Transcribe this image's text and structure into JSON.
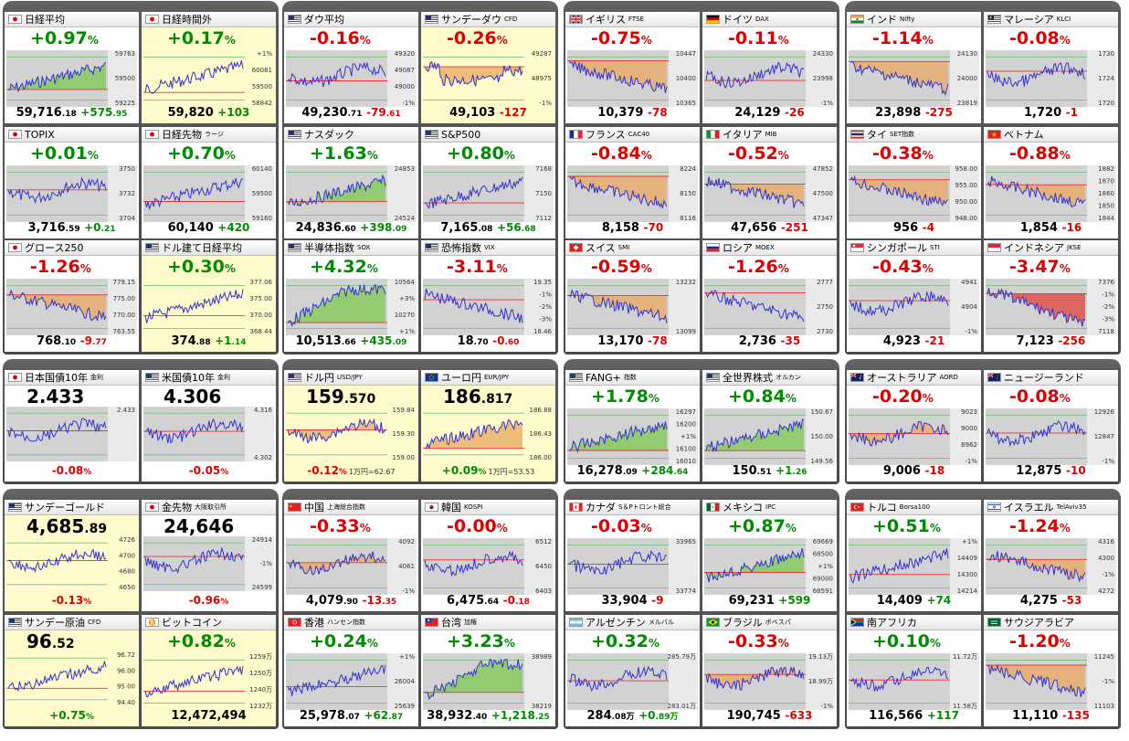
{
  "colors": {
    "up": "#008c00",
    "down": "#dd0000",
    "panel": "#5a5a5a",
    "highlight": "#fffbcc",
    "chart_bg": "#d4d4d4"
  },
  "groups": [
    {
      "cards": [
        {
          "name": "日経平均",
          "flag": "jp",
          "change": "+0.97",
          "dir": "up",
          "price_int": "59,716",
          "price_dec": ".18",
          "diff": "+575",
          "diff_dec": ".95",
          "labels": [
            "59763",
            "59500",
            "59225"
          ],
          "chart": "up",
          "fill": "green"
        },
        {
          "name": "日経時間外",
          "flag": "jp",
          "change": "+0.17",
          "dir": "up",
          "price_int": "59,820",
          "price_dec": "",
          "diff": "+103",
          "diff_dec": "",
          "labels": [
            "+1%",
            "60081",
            "59500",
            "58842"
          ],
          "chart": "up",
          "fill": "none",
          "yellow": true
        },
        {
          "name": "TOPIX",
          "flag": "jp",
          "change": "+0.01",
          "dir": "up",
          "price_int": "3,716",
          "price_dec": ".59",
          "diff": "+0",
          "diff_dec": ".21",
          "labels": [
            "3750",
            "3732",
            "3704"
          ],
          "chart": "flat",
          "fill": "none"
        },
        {
          "name": "日経先物",
          "sub": "ラージ",
          "flag": "jp",
          "change": "+0.70",
          "dir": "up",
          "price_int": "60,140",
          "price_dec": "",
          "diff": "+420",
          "diff_dec": "",
          "labels": [
            "60140",
            "59500",
            "59160"
          ],
          "chart": "up",
          "fill": "none"
        },
        {
          "name": "グロース250",
          "flag": "jp",
          "change": "-1.26",
          "dir": "dn",
          "price_int": "768",
          "price_dec": ".10",
          "diff": "-9",
          "diff_dec": ".77",
          "labels": [
            "779.15",
            "775.00",
            "770.00",
            "763.55"
          ],
          "chart": "down",
          "fill": "orange"
        },
        {
          "name": "ドル建て日経平均",
          "flag": "us",
          "change": "+0.30",
          "dir": "up",
          "price_int": "374",
          "price_dec": ".88",
          "diff": "+1",
          "diff_dec": ".14",
          "labels": [
            "377.06",
            "375.00",
            "370.00",
            "368.44"
          ],
          "chart": "up",
          "fill": "none",
          "yellow": true
        }
      ]
    },
    {
      "cards": [
        {
          "name": "ダウ平均",
          "flag": "us",
          "change": "-0.16",
          "dir": "dn",
          "price_int": "49,230",
          "price_dec": ".71",
          "diff": "-79",
          "diff_dec": ".61",
          "labels": [
            "49320",
            "49087",
            "49000",
            "-1%"
          ],
          "chart": "flat",
          "fill": "none"
        },
        {
          "name": "サンデーダウ",
          "sub": "CFD",
          "flag": "us",
          "change": "-0.26",
          "dir": "dn",
          "price_int": "49,103",
          "price_dec": "",
          "diff": "-127",
          "diff_dec": "",
          "labels": [
            "49287",
            "48975",
            "-1%"
          ],
          "chart": "step",
          "fill": "orange",
          "yellow": true
        },
        {
          "name": "ナスダック",
          "flag": "us",
          "change": "+1.63",
          "dir": "up",
          "price_int": "24,836",
          "price_dec": ".60",
          "diff": "+398",
          "diff_dec": ".09",
          "labels": [
            "24853",
            "24524"
          ],
          "chart": "up",
          "fill": "green"
        },
        {
          "name": "S&P500",
          "flag": "us",
          "change": "+0.80",
          "dir": "up",
          "price_int": "7,165",
          "price_dec": ".08",
          "diff": "+56",
          "diff_dec": ".68",
          "labels": [
            "7168",
            "7150",
            "7112"
          ],
          "chart": "up",
          "fill": "none"
        },
        {
          "name": "半導体指数",
          "sub": "SOX",
          "flag": "us",
          "change": "+4.32",
          "dir": "up",
          "price_int": "10,513",
          "price_dec": ".66",
          "diff": "+435",
          "diff_dec": ".09",
          "labels": [
            "10564",
            "+3%",
            "10270",
            "+1%"
          ],
          "chart": "upfast",
          "fill": "green"
        },
        {
          "name": "恐怖指数",
          "sub": "VIX",
          "flag": "us",
          "change": "-3.11",
          "dir": "dn",
          "price_int": "18",
          "price_dec": ".70",
          "diff": "-0",
          "diff_dec": ".60",
          "labels": [
            "19.35",
            "-1%",
            "-2%",
            "-3%",
            "18.46"
          ],
          "chart": "down",
          "fill": "none"
        }
      ]
    },
    {
      "cards": [
        {
          "name": "イギリス",
          "sub": "FTSE",
          "flag": "gb",
          "change": "-0.75",
          "dir": "dn",
          "price_int": "10,379",
          "price_dec": "",
          "diff": "-78",
          "diff_dec": "",
          "labels": [
            "10447",
            "10400",
            "10365"
          ],
          "chart": "down",
          "fill": "orange"
        },
        {
          "name": "ドイツ",
          "sub": "DAX",
          "flag": "de",
          "change": "-0.11",
          "dir": "dn",
          "price_int": "24,129",
          "price_dec": "",
          "diff": "-26",
          "diff_dec": "",
          "labels": [
            "24330",
            "23998",
            "-1%"
          ],
          "chart": "flat",
          "fill": "none"
        },
        {
          "name": "フランス",
          "sub": "CAC40",
          "flag": "fr",
          "change": "-0.84",
          "dir": "dn",
          "price_int": "8,158",
          "price_dec": "",
          "diff": "-70",
          "diff_dec": "",
          "labels": [
            "8224",
            "8150",
            "8116"
          ],
          "chart": "down",
          "fill": "orange"
        },
        {
          "name": "イタリア",
          "sub": "MIB",
          "flag": "it",
          "change": "-0.52",
          "dir": "dn",
          "price_int": "47,656",
          "price_dec": "",
          "diff": "-251",
          "diff_dec": "",
          "labels": [
            "47852",
            "47500",
            "47347"
          ],
          "chart": "down",
          "fill": "orange"
        },
        {
          "name": "スイス",
          "sub": "SMI",
          "flag": "ch",
          "change": "-0.59",
          "dir": "dn",
          "price_int": "13,170",
          "price_dec": "",
          "diff": "-78",
          "diff_dec": "",
          "labels": [
            "13232",
            "13099"
          ],
          "chart": "down",
          "fill": "orange"
        },
        {
          "name": "ロシア",
          "sub": "MOEX",
          "flag": "ru",
          "change": "-1.26",
          "dir": "dn",
          "price_int": "2,736",
          "price_dec": "",
          "diff": "-35",
          "diff_dec": "",
          "labels": [
            "2777",
            "2750",
            "2730"
          ],
          "chart": "down",
          "fill": "none"
        }
      ]
    },
    {
      "cards": [
        {
          "name": "インド",
          "sub": "Nifty",
          "flag": "in",
          "change": "-1.14",
          "dir": "dn",
          "price_int": "23,898",
          "price_dec": "",
          "diff": "-275",
          "diff_dec": "",
          "labels": [
            "24130",
            "24000",
            "23819"
          ],
          "chart": "down",
          "fill": "orange"
        },
        {
          "name": "マレーシア",
          "sub": "KLCI",
          "flag": "my",
          "change": "-0.08",
          "dir": "dn",
          "price_int": "1,720",
          "price_dec": "",
          "diff": "-1",
          "diff_dec": "",
          "labels": [
            "1730",
            "1724",
            "1720"
          ],
          "chart": "flat",
          "fill": "none"
        },
        {
          "name": "タイ",
          "sub": "SET指数",
          "flag": "th",
          "change": "-0.38",
          "dir": "dn",
          "price_int": "956",
          "price_dec": "",
          "diff": "-4",
          "diff_dec": "",
          "labels": [
            "958.00",
            "955.00",
            "950.00",
            "948.00"
          ],
          "chart": "down",
          "fill": "orange"
        },
        {
          "name": "ベトナム",
          "flag": "vn",
          "change": "-0.88",
          "dir": "dn",
          "price_int": "1,854",
          "price_dec": "",
          "diff": "-16",
          "diff_dec": "",
          "labels": [
            "1882",
            "1870",
            "1860",
            "1850",
            "1844"
          ],
          "chart": "down",
          "fill": "orange"
        },
        {
          "name": "シンガポール",
          "sub": "STI",
          "flag": "sg",
          "change": "-0.43",
          "dir": "dn",
          "price_int": "4,923",
          "price_dec": "",
          "diff": "-21",
          "diff_dec": "",
          "labels": [
            "4941",
            "4904",
            "-1%"
          ],
          "chart": "flat",
          "fill": "none"
        },
        {
          "name": "インドネシア",
          "sub": "JKSE",
          "flag": "id",
          "change": "-3.47",
          "dir": "dn",
          "price_int": "7,123",
          "price_dec": "",
          "diff": "-256",
          "diff_dec": "",
          "labels": [
            "7376",
            "-1%",
            "-2%",
            "-3%",
            "7118"
          ],
          "chart": "downfast",
          "fill": "red"
        }
      ]
    },
    {
      "cards": [
        {
          "name": "日本国債10年",
          "sub": "金利",
          "flag": "jp",
          "kind": "bond",
          "value": "2.433",
          "pct": "-0.08",
          "dir": "dn",
          "labels": [
            "2.433"
          ]
        },
        {
          "name": "米国債10年",
          "sub": "金利",
          "flag": "us",
          "kind": "bond",
          "value": "4.306",
          "pct": "-0.05",
          "dir": "dn",
          "labels": [
            "4.316",
            "4.302"
          ]
        },
        {
          "name": "ドル円",
          "sub": "USD/JPY",
          "flag": "us",
          "kind": "fx",
          "value_int": "159",
          "value_dec": ".570",
          "pct": "-0.12",
          "dir": "dn",
          "aux": "1万円=62.67",
          "labels": [
            "159.84",
            "159.30",
            "159.00"
          ],
          "yellow": true
        },
        {
          "name": "ユーロ円",
          "sub": "EUR/JPY",
          "flag": "eu",
          "kind": "fx",
          "value_int": "186",
          "value_dec": ".817",
          "pct": "+0.09",
          "dir": "up",
          "aux": "1万円=53.53",
          "labels": [
            "186.88",
            "186.43",
            "186.00"
          ],
          "yellow": true
        }
      ]
    },
    {
      "cards": [
        {
          "name": "FANG+",
          "sub": "指数",
          "flag": "us",
          "change": "+1.78",
          "dir": "up",
          "price_int": "16,278",
          "price_dec": ".09",
          "diff": "+284",
          "diff_dec": ".64",
          "labels": [
            "16297",
            "16200",
            "+1%",
            "16100",
            "16010"
          ],
          "chart": "up",
          "fill": "green"
        },
        {
          "name": "全世界株式",
          "sub": "オルカン",
          "flag": "us",
          "change": "+0.84",
          "dir": "up",
          "price_int": "150",
          "price_dec": ".51",
          "diff": "+1",
          "diff_dec": ".26",
          "labels": [
            "150.67",
            "150.00",
            "149.56"
          ],
          "chart": "up",
          "fill": "green"
        }
      ]
    },
    {
      "cards": [
        {
          "name": "オーストラリア",
          "sub": "AORD",
          "flag": "au",
          "change": "-0.20",
          "dir": "dn",
          "price_int": "9,006",
          "price_dec": "",
          "diff": "-18",
          "diff_dec": "",
          "labels": [
            "9023",
            "9000",
            "8962",
            "-1%"
          ],
          "chart": "flat",
          "fill": "orange"
        },
        {
          "name": "ニュージーランド",
          "flag": "nz",
          "change": "-0.08",
          "dir": "dn",
          "price_int": "12,875",
          "price_dec": "",
          "diff": "-10",
          "diff_dec": "",
          "labels": [
            "12926",
            "12847",
            "-1%"
          ],
          "chart": "flat",
          "fill": "none"
        }
      ]
    },
    {
      "cards": [
        {
          "name": "サンデーゴールド",
          "flag": "us",
          "kind": "gold",
          "value_int": "4,685",
          "value_dec": ".89",
          "pct": "-0.13",
          "dir": "dn",
          "labels": [
            "4726",
            "4700",
            "4680",
            "4650"
          ],
          "yellow": true
        },
        {
          "name": "金先物",
          "sub": "大阪取引所",
          "flag": "jp",
          "kind": "gold",
          "value_int": "24,646",
          "value_dec": "",
          "pct": "-0.96",
          "dir": "dn",
          "labels": [
            "24914",
            "-1%",
            "24599"
          ]
        },
        {
          "name": "サンデー原油",
          "sub": "CFD",
          "flag": "us",
          "kind": "gold",
          "value_int": "96",
          "value_dec": ".52",
          "pct": "+0.75",
          "dir": "up",
          "labels": [
            "96.72",
            "96.00",
            "95.00",
            "94.40"
          ],
          "yellow": true
        },
        {
          "name": "ビットコイン",
          "flag": "btc",
          "change": "+0.82",
          "dir": "up",
          "price_int": "12,472,494",
          "price_dec": "",
          "diff": "",
          "diff_dec": "",
          "labels": [
            "1259万",
            "1250万",
            "1240万",
            "1232万"
          ],
          "chart": "up",
          "fill": "none",
          "yellow": true
        }
      ]
    },
    {
      "cards": [
        {
          "name": "中国",
          "sub": "上海総合指数",
          "flag": "cn",
          "change": "-0.33",
          "dir": "dn",
          "price_int": "4,079",
          "price_dec": ".90",
          "diff": "-13",
          "diff_dec": ".35",
          "labels": [
            "4092",
            "4061",
            "-1%"
          ],
          "chart": "flat",
          "fill": "orange"
        },
        {
          "name": "韓国",
          "sub": "KOSPI",
          "flag": "kr",
          "change": "-0.00",
          "dir": "dn",
          "price_int": "6,475",
          "price_dec": ".64",
          "diff": "-0",
          "diff_dec": ".18",
          "labels": [
            "6512",
            "6450",
            "6403"
          ],
          "chart": "flat",
          "fill": "none"
        },
        {
          "name": "香港",
          "sub": "ハンセン指数",
          "flag": "hk",
          "change": "+0.24",
          "dir": "up",
          "price_int": "25,978",
          "price_dec": ".07",
          "diff": "+62",
          "diff_dec": ".87",
          "labels": [
            "+1%",
            "26004",
            "25639"
          ],
          "chart": "up",
          "fill": "none"
        },
        {
          "name": "台湾",
          "sub": "加権",
          "flag": "tw",
          "change": "+3.23",
          "dir": "up",
          "price_int": "38,932",
          "price_dec": ".40",
          "diff": "+1,218",
          "diff_dec": ".25",
          "labels": [
            "38989",
            "38219"
          ],
          "chart": "upfast",
          "fill": "green"
        }
      ]
    },
    {
      "cards": [
        {
          "name": "カナダ",
          "sub": "S＆Pトロント総合",
          "flag": "ca",
          "change": "-0.03",
          "dir": "dn",
          "price_int": "33,904",
          "price_dec": "",
          "diff": "-9",
          "diff_dec": "",
          "labels": [
            "33965",
            "33774"
          ],
          "chart": "flat",
          "fill": "none"
        },
        {
          "name": "メキシコ",
          "sub": "IPC",
          "flag": "mx",
          "change": "+0.87",
          "dir": "up",
          "price_int": "69,231",
          "price_dec": "",
          "diff": "+599",
          "diff_dec": "",
          "labels": [
            "69669",
            "68500",
            "+1%",
            "69000",
            "68591"
          ],
          "chart": "up",
          "fill": "green"
        },
        {
          "name": "アルゼンチン",
          "sub": "メルバル",
          "flag": "ar",
          "change": "+0.32",
          "dir": "up",
          "price_int": "284",
          "price_dec": ".08万",
          "diff": "+0",
          "diff_dec": ".89万",
          "labels": [
            "285.79万",
            "283.01万"
          ],
          "chart": "flat",
          "fill": "none"
        },
        {
          "name": "ブラジル",
          "sub": "ボベスパ",
          "flag": "br",
          "change": "-0.33",
          "dir": "dn",
          "price_int": "190,745",
          "price_dec": "",
          "diff": "-633",
          "diff_dec": "",
          "labels": [
            "19.13万",
            "18.99万",
            "-1%"
          ],
          "chart": "flat",
          "fill": "orange"
        }
      ]
    },
    {
      "cards": [
        {
          "name": "トルコ",
          "sub": "Borsa100",
          "flag": "tr",
          "change": "+0.51",
          "dir": "up",
          "price_int": "14,409",
          "price_dec": "",
          "diff": "+74",
          "diff_dec": "",
          "labels": [
            "+1%",
            "14409",
            "14300",
            "14214"
          ],
          "chart": "up",
          "fill": "none"
        },
        {
          "name": "イスラエル",
          "sub": "TelAviv35",
          "flag": "il",
          "change": "-1.24",
          "dir": "dn",
          "price_int": "4,275",
          "price_dec": "",
          "diff": "-53",
          "diff_dec": "",
          "labels": [
            "4316",
            "4300",
            "-1%",
            "4272"
          ],
          "chart": "down",
          "fill": "orange"
        },
        {
          "name": "南アフリカ",
          "flag": "za",
          "change": "+0.10",
          "dir": "up",
          "price_int": "116,566",
          "price_dec": "",
          "diff": "+117",
          "diff_dec": "",
          "labels": [
            "11.72万",
            "11.58万"
          ],
          "chart": "flat",
          "fill": "none"
        },
        {
          "name": "サウジアラビア",
          "flag": "sa",
          "change": "-1.20",
          "dir": "dn",
          "price_int": "11,110",
          "price_dec": "",
          "diff": "-135",
          "diff_dec": "",
          "labels": [
            "11245",
            "-1%",
            "11103"
          ],
          "chart": "down",
          "fill": "orange"
        }
      ]
    }
  ]
}
